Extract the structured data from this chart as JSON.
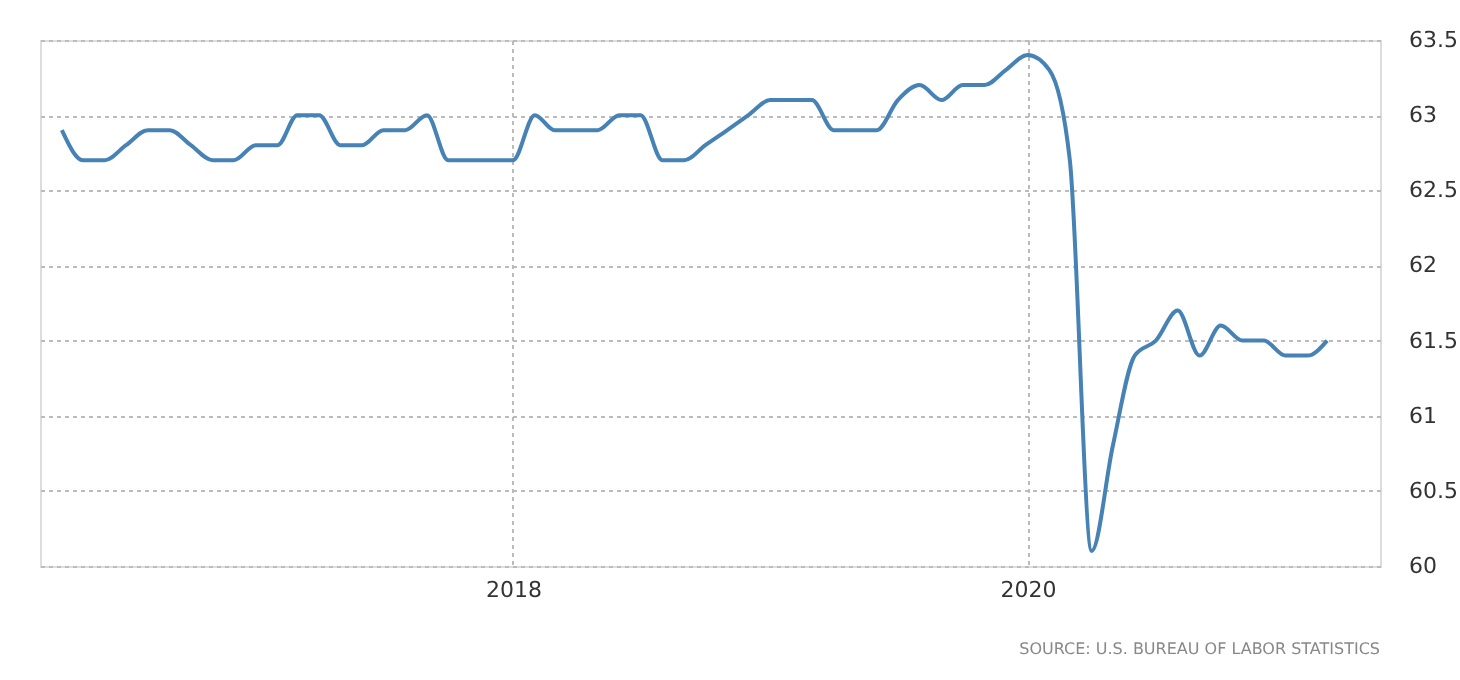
{
  "chart_data": {
    "type": "line",
    "x": [
      "2016-04",
      "2016-05",
      "2016-06",
      "2016-07",
      "2016-08",
      "2016-09",
      "2016-10",
      "2016-11",
      "2016-12",
      "2017-01",
      "2017-02",
      "2017-03",
      "2017-04",
      "2017-05",
      "2017-06",
      "2017-07",
      "2017-08",
      "2017-09",
      "2017-10",
      "2017-11",
      "2017-12",
      "2018-01",
      "2018-02",
      "2018-03",
      "2018-04",
      "2018-05",
      "2018-06",
      "2018-07",
      "2018-08",
      "2018-09",
      "2018-10",
      "2018-11",
      "2018-12",
      "2019-01",
      "2019-02",
      "2019-03",
      "2019-04",
      "2019-05",
      "2019-06",
      "2019-07",
      "2019-08",
      "2019-09",
      "2019-10",
      "2019-11",
      "2019-12",
      "2020-01",
      "2020-02",
      "2020-03",
      "2020-04",
      "2020-05",
      "2020-06",
      "2020-07",
      "2020-08",
      "2020-09",
      "2020-10",
      "2020-11",
      "2020-12",
      "2021-01",
      "2021-02",
      "2021-03"
    ],
    "series": [
      {
        "color": "#4682b4",
        "values": [
          62.9,
          62.7,
          62.7,
          62.8,
          62.9,
          62.9,
          62.8,
          62.7,
          62.7,
          62.8,
          62.8,
          63.0,
          63.0,
          62.8,
          62.8,
          62.9,
          62.9,
          63.0,
          62.7,
          62.7,
          62.7,
          62.7,
          63.0,
          62.9,
          62.9,
          62.9,
          63.0,
          63.0,
          62.7,
          62.7,
          62.8,
          62.9,
          63.0,
          63.1,
          63.1,
          63.1,
          62.9,
          62.9,
          62.9,
          63.1,
          63.2,
          63.1,
          63.2,
          63.2,
          63.3,
          63.4,
          63.3,
          62.7,
          60.1,
          60.8,
          61.4,
          61.5,
          61.7,
          61.4,
          61.6,
          61.5,
          61.5,
          61.4,
          61.4,
          61.5
        ]
      }
    ],
    "xlim": [
      "2016-03-01",
      "2021-05-15"
    ],
    "xticks": [
      {
        "value": "2018-01-01",
        "label": "2018"
      },
      {
        "value": "2020-01-01",
        "label": "2020"
      }
    ],
    "ylim": [
      60,
      63.5
    ],
    "yticks": [
      60,
      60.5,
      61,
      61.5,
      62,
      62.5,
      63,
      63.5
    ],
    "grid": true,
    "line_style": "solid",
    "annotations": [
      "SOURCE: U.S. BUREAU OF LABOR STATISTICS"
    ]
  }
}
